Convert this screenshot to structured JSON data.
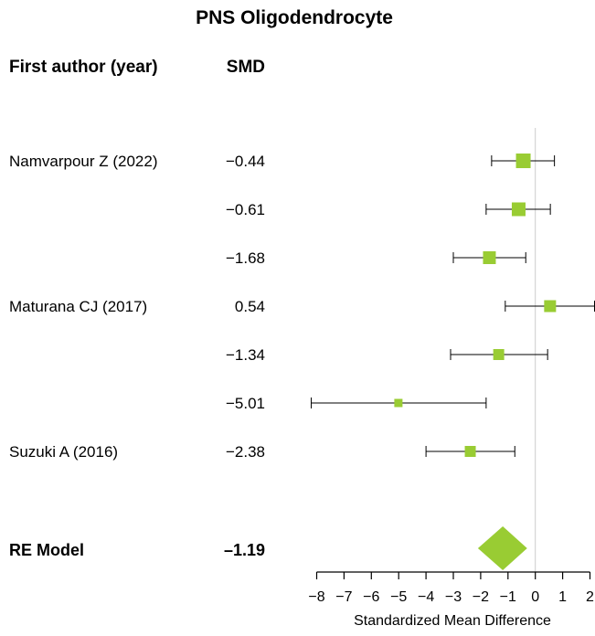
{
  "chart_data": {
    "type": "forest",
    "title": "PNS Oligodendrocyte",
    "headers": {
      "study": "First author (year)",
      "effect": "SMD"
    },
    "xlabel": "Standardized Mean Difference",
    "xlim": [
      -8,
      2
    ],
    "xticks": [
      -8,
      -7,
      -6,
      -5,
      -4,
      -3,
      -2,
      -1,
      0,
      1,
      2
    ],
    "xtick_labels": [
      "−8",
      "−7",
      "−6",
      "−5",
      "−4",
      "−3",
      "−2",
      "−1",
      "0",
      "1",
      "2"
    ],
    "reference_line": 0,
    "studies": [
      {
        "author": "Namvarpour Z (2022)",
        "smd": -0.44,
        "smd_label": "−0.44",
        "ci": [
          -1.6,
          0.7
        ]
      },
      {
        "author": "",
        "smd": -0.61,
        "smd_label": "−0.61",
        "ci": [
          -1.8,
          0.55
        ]
      },
      {
        "author": "",
        "smd": -1.68,
        "smd_label": "−1.68",
        "ci": [
          -3.0,
          -0.35
        ]
      },
      {
        "author": "Maturana CJ (2017)",
        "smd": 0.54,
        "smd_label": "0.54",
        "ci": [
          -1.1,
          2.2
        ]
      },
      {
        "author": "",
        "smd": -1.34,
        "smd_label": "−1.34",
        "ci": [
          -3.1,
          0.45
        ]
      },
      {
        "author": "",
        "smd": -5.01,
        "smd_label": "−5.01",
        "ci": [
          -8.2,
          -1.8
        ]
      },
      {
        "author": "Suzuki A (2016)",
        "smd": -2.38,
        "smd_label": "−2.38",
        "ci": [
          -4.0,
          -0.75
        ]
      }
    ],
    "summary": {
      "label": "RE Model",
      "smd": -1.19,
      "smd_label": "–1.19",
      "ci": [
        -2.1,
        -0.3
      ]
    },
    "colors": {
      "marker": "#99cc33",
      "line": "#000000",
      "reference": "#cccccc"
    }
  }
}
